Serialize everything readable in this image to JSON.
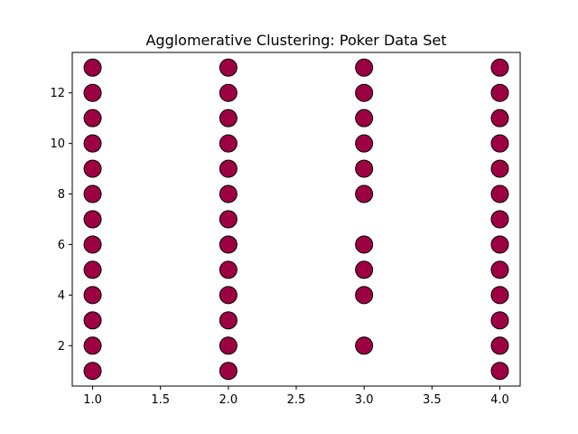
{
  "chart_data": {
    "type": "scatter",
    "title": "Agglomerative Clustering: Poker Data Set",
    "xlabel": "",
    "ylabel": "",
    "xlim": [
      0.85,
      4.15
    ],
    "ylim": [
      0.4,
      13.6
    ],
    "xticks": [
      1.0,
      1.5,
      2.0,
      2.5,
      3.0,
      3.5,
      4.0
    ],
    "xtick_labels": [
      "1.0",
      "1.5",
      "2.0",
      "2.5",
      "3.0",
      "3.5",
      "4.0"
    ],
    "yticks": [
      2,
      4,
      6,
      8,
      10,
      12
    ],
    "ytick_labels": [
      "2",
      "4",
      "6",
      "8",
      "10",
      "12"
    ],
    "grid": false,
    "marker_color": "#9e0142",
    "marker_edge_color": "#000000",
    "series": [
      {
        "points": [
          [
            1,
            1
          ],
          [
            1,
            2
          ],
          [
            1,
            3
          ],
          [
            1,
            4
          ],
          [
            1,
            5
          ],
          [
            1,
            6
          ],
          [
            1,
            7
          ],
          [
            1,
            8
          ],
          [
            1,
            9
          ],
          [
            1,
            10
          ],
          [
            1,
            11
          ],
          [
            1,
            12
          ],
          [
            1,
            13
          ],
          [
            2,
            1
          ],
          [
            2,
            2
          ],
          [
            2,
            3
          ],
          [
            2,
            4
          ],
          [
            2,
            5
          ],
          [
            2,
            6
          ],
          [
            2,
            7
          ],
          [
            2,
            8
          ],
          [
            2,
            9
          ],
          [
            2,
            10
          ],
          [
            2,
            11
          ],
          [
            2,
            12
          ],
          [
            2,
            13
          ],
          [
            3,
            2
          ],
          [
            3,
            4
          ],
          [
            3,
            5
          ],
          [
            3,
            6
          ],
          [
            3,
            8
          ],
          [
            3,
            9
          ],
          [
            3,
            10
          ],
          [
            3,
            11
          ],
          [
            3,
            12
          ],
          [
            3,
            13
          ],
          [
            4,
            1
          ],
          [
            4,
            2
          ],
          [
            4,
            3
          ],
          [
            4,
            4
          ],
          [
            4,
            5
          ],
          [
            4,
            6
          ],
          [
            4,
            7
          ],
          [
            4,
            8
          ],
          [
            4,
            9
          ],
          [
            4,
            10
          ],
          [
            4,
            11
          ],
          [
            4,
            12
          ],
          [
            4,
            13
          ]
        ]
      }
    ]
  }
}
